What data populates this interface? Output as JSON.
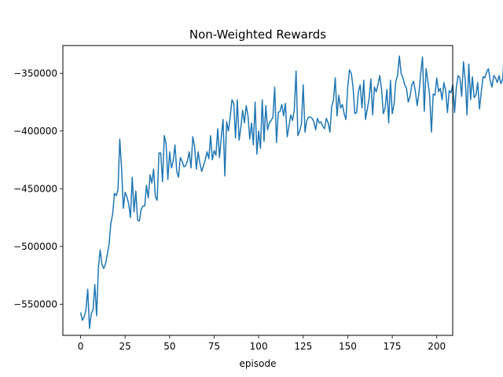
{
  "chart_data": {
    "type": "line",
    "title": "Non-Weighted Rewards",
    "xlabel": "episode",
    "ylabel": "",
    "xlim": [
      -9.95,
      208.95
    ],
    "ylim": [
      -577000,
      -326000
    ],
    "xticks": [
      0,
      25,
      50,
      75,
      100,
      125,
      150,
      175,
      200
    ],
    "xtick_labels": [
      "0",
      "25",
      "50",
      "75",
      "100",
      "125",
      "150",
      "175",
      "200"
    ],
    "yticks": [
      -550000,
      -500000,
      -450000,
      -400000,
      -350000
    ],
    "ytick_labels": [
      "−550000",
      "−500000",
      "−450000",
      "−400000",
      "−350000"
    ],
    "grid": false,
    "line_color": "#1f77b4",
    "series": [
      {
        "values": [
          -557000,
          -564000,
          -561000,
          -555000,
          -537000,
          -571000,
          -558000,
          -555000,
          -533000,
          -560000,
          -518000,
          -503000,
          -516000,
          -519000,
          -515000,
          -507000,
          -498000,
          -480000,
          -472000,
          -454000,
          -456000,
          -451000,
          -407000,
          -432000,
          -467000,
          -453000,
          -457000,
          -463000,
          -475000,
          -440000,
          -470000,
          -452000,
          -477000,
          -478000,
          -468000,
          -465000,
          -465000,
          -447000,
          -458000,
          -438000,
          -445000,
          -433000,
          -457000,
          -460000,
          -419000,
          -419000,
          -444000,
          -404000,
          -411000,
          -442000,
          -418000,
          -432000,
          -426000,
          -412000,
          -435000,
          -440000,
          -423000,
          -426000,
          -431000,
          -430000,
          -426000,
          -418000,
          -432000,
          -405000,
          -413000,
          -433000,
          -418000,
          -428000,
          -435000,
          -430000,
          -425000,
          -418000,
          -424000,
          -404000,
          -425000,
          -417000,
          -421000,
          -398000,
          -423000,
          -405000,
          -390000,
          -439000,
          -392000,
          -400000,
          -388000,
          -373000,
          -376000,
          -406000,
          -373000,
          -408000,
          -397000,
          -382000,
          -393000,
          -378000,
          -387000,
          -407000,
          -393000,
          -412000,
          -375000,
          -420000,
          -400000,
          -415000,
          -373000,
          -409000,
          -378000,
          -399000,
          -393000,
          -391000,
          -388000,
          -362000,
          -410000,
          -384000,
          -383000,
          -377000,
          -387000,
          -376000,
          -405000,
          -396000,
          -386000,
          -391000,
          -382000,
          -348000,
          -404000,
          -400000,
          -394000,
          -360000,
          -401000,
          -391000,
          -388000,
          -388000,
          -389000,
          -392000,
          -399000,
          -389000,
          -393000,
          -392000,
          -396000,
          -398000,
          -389000,
          -393000,
          -401000,
          -379000,
          -373000,
          -354000,
          -387000,
          -369000,
          -380000,
          -377000,
          -385000,
          -390000,
          -362000,
          -347000,
          -350000,
          -362000,
          -385000,
          -384000,
          -366000,
          -360000,
          -380000,
          -356000,
          -390000,
          -381000,
          -372000,
          -355000,
          -386000,
          -362000,
          -366000,
          -360000,
          -352000,
          -364000,
          -385000,
          -380000,
          -364000,
          -393000,
          -356000,
          -385000,
          -377000,
          -357000,
          -352000,
          -335000,
          -350000,
          -354000,
          -360000,
          -363000,
          -375000,
          -370000,
          -360000,
          -357000,
          -366000,
          -378000,
          -367000,
          -350000,
          -336000,
          -383000,
          -346000,
          -357000,
          -369000,
          -401000,
          -368000,
          -369000,
          -354000,
          -366000,
          -363000,
          -373000,
          -358000,
          -365000,
          -384000,
          -365000,
          -367000,
          -360000,
          -384000,
          -362000,
          -352000,
          -354000,
          -370000,
          -340000,
          -356000,
          -386000,
          -342000,
          -373000,
          -353000,
          -371000,
          -369000,
          -358000,
          -381000,
          -366000,
          -353000,
          -354000,
          -349000,
          -346000,
          -356000,
          -362000,
          -352000,
          -354000,
          -358000,
          -352000,
          -359000,
          -355000,
          -332000,
          -341000,
          -351000,
          -345000,
          -357000,
          -342000,
          -353000,
          -333000,
          -336000,
          -376000,
          -360000,
          -358000,
          -355000,
          -345000,
          -340000,
          -351000,
          -369000,
          -361000,
          -368000,
          -350000,
          -336000,
          -356000,
          -358000,
          -354000,
          -342000,
          -345000,
          -343000,
          -345000,
          -355000,
          -375000,
          -351000,
          -368000,
          -354000,
          -358000,
          -346000,
          -342000,
          -357000,
          -333000,
          -340000,
          -351000,
          -356000,
          -358000,
          -352000,
          -363000,
          -353000,
          -348000,
          -341000,
          -347000,
          -351000,
          -349000,
          -352000,
          -339000,
          -347000,
          -346000,
          -355000,
          -349000,
          -347000,
          -351000,
          -357000,
          -346000,
          -351000,
          -347000,
          -343000,
          -352000,
          -357000,
          -345000,
          -348000,
          -349000,
          -353000,
          -341000,
          -359000,
          -350000,
          -331000,
          -351000,
          -355000,
          -343000,
          -348000,
          -347000,
          -346000,
          -346000,
          -347000,
          -347000
        ]
      }
    ]
  }
}
